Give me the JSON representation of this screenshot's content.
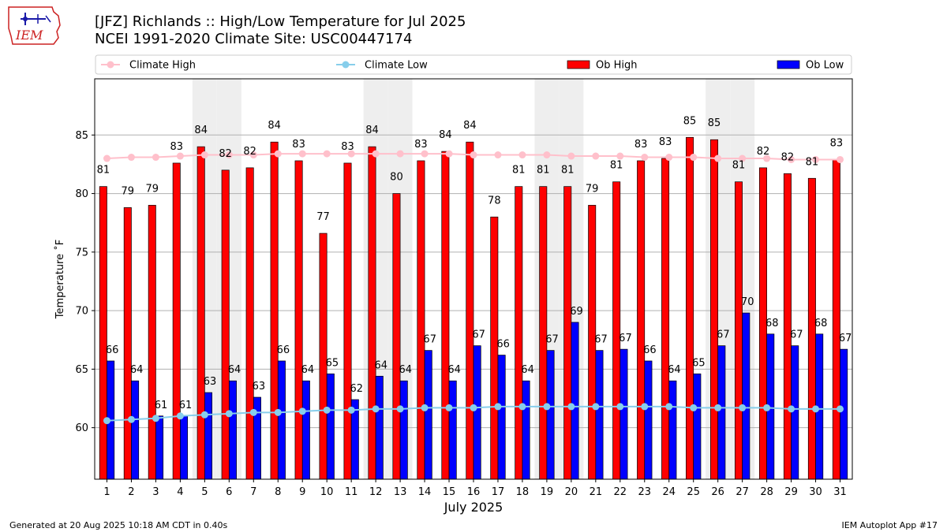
{
  "header": {
    "title": "[JFZ] Richlands :: High/Low Temperature for Jul 2025",
    "subtitle": "NCEI 1991-2020 Climate Site: USC00447174"
  },
  "logo": {
    "text": "IEM",
    "color": "#cc2222",
    "icon": "iowa-map-logo-icon"
  },
  "footer": {
    "left": "Generated at 20 Aug 2025 10:18 AM CDT in 0.40s",
    "right": "IEM Autoplot App #17"
  },
  "chart_data": {
    "type": "bar",
    "xlabel": "July 2025",
    "ylabel": "Temperature ˚F",
    "ylim": [
      55.6,
      89.8
    ],
    "yticks": [
      60,
      65,
      70,
      75,
      80,
      85
    ],
    "grid": "horizontal",
    "legend_position": "top",
    "weekend_shading_days": [
      5,
      6,
      12,
      13,
      19,
      20,
      26,
      27
    ],
    "categories": [
      "1",
      "2",
      "3",
      "4",
      "5",
      "6",
      "7",
      "8",
      "9",
      "10",
      "11",
      "12",
      "13",
      "14",
      "15",
      "16",
      "17",
      "18",
      "19",
      "20",
      "21",
      "22",
      "23",
      "24",
      "25",
      "26",
      "27",
      "28",
      "29",
      "30",
      "31"
    ],
    "series": [
      {
        "name": "Ob High",
        "kind": "bar",
        "color": "#ff0000",
        "values": [
          80.6,
          78.8,
          79.0,
          82.6,
          84.0,
          82.0,
          82.2,
          84.4,
          82.8,
          76.6,
          82.6,
          84.0,
          80.0,
          82.8,
          83.6,
          84.4,
          78.0,
          80.6,
          80.6,
          80.6,
          79.0,
          81.0,
          82.8,
          83.0,
          84.8,
          84.6,
          81.0,
          82.2,
          81.7,
          81.3,
          82.9
        ],
        "labels": [
          "81",
          "79",
          "79",
          "83",
          "84",
          "82",
          "82",
          "84",
          "83",
          "77",
          "83",
          "84",
          "80",
          "83",
          "84",
          "84",
          "78",
          "81",
          "81",
          "81",
          "79",
          "81",
          "83",
          "83",
          "85",
          "85",
          "81",
          "82",
          "82",
          "81",
          "83"
        ]
      },
      {
        "name": "Ob Low",
        "kind": "bar",
        "color": "#0000ff",
        "values": [
          65.7,
          64.0,
          61.0,
          61.0,
          63.0,
          64.0,
          62.6,
          65.7,
          64.0,
          64.6,
          62.4,
          64.4,
          64.0,
          66.6,
          64.0,
          67.0,
          66.2,
          64.0,
          66.6,
          69.0,
          66.6,
          66.7,
          65.7,
          64.0,
          64.6,
          67.0,
          69.8,
          68.0,
          67.0,
          68.0,
          66.7
        ],
        "labels": [
          "66",
          "64",
          "61",
          "61",
          "63",
          "64",
          "63",
          "66",
          "64",
          "65",
          "62",
          "64",
          "64",
          "67",
          "64",
          "67",
          "66",
          "64",
          "67",
          "69",
          "67",
          "67",
          "66",
          "64",
          "65",
          "67",
          "70",
          "68",
          "67",
          "68",
          "67"
        ]
      },
      {
        "name": "Climate High",
        "kind": "line",
        "color": "#ffc0cb",
        "values": [
          83.0,
          83.1,
          83.1,
          83.2,
          83.3,
          83.3,
          83.3,
          83.4,
          83.4,
          83.4,
          83.4,
          83.4,
          83.4,
          83.4,
          83.4,
          83.3,
          83.3,
          83.3,
          83.3,
          83.2,
          83.2,
          83.2,
          83.1,
          83.1,
          83.1,
          83.0,
          83.0,
          83.0,
          82.9,
          82.9,
          82.9
        ]
      },
      {
        "name": "Climate Low",
        "kind": "line",
        "color": "#87ceeb",
        "values": [
          60.6,
          60.7,
          60.8,
          61.0,
          61.1,
          61.2,
          61.3,
          61.3,
          61.4,
          61.5,
          61.5,
          61.6,
          61.6,
          61.7,
          61.7,
          61.7,
          61.8,
          61.8,
          61.8,
          61.8,
          61.8,
          61.8,
          61.8,
          61.8,
          61.7,
          61.7,
          61.7,
          61.7,
          61.6,
          61.6,
          61.6
        ]
      }
    ]
  }
}
